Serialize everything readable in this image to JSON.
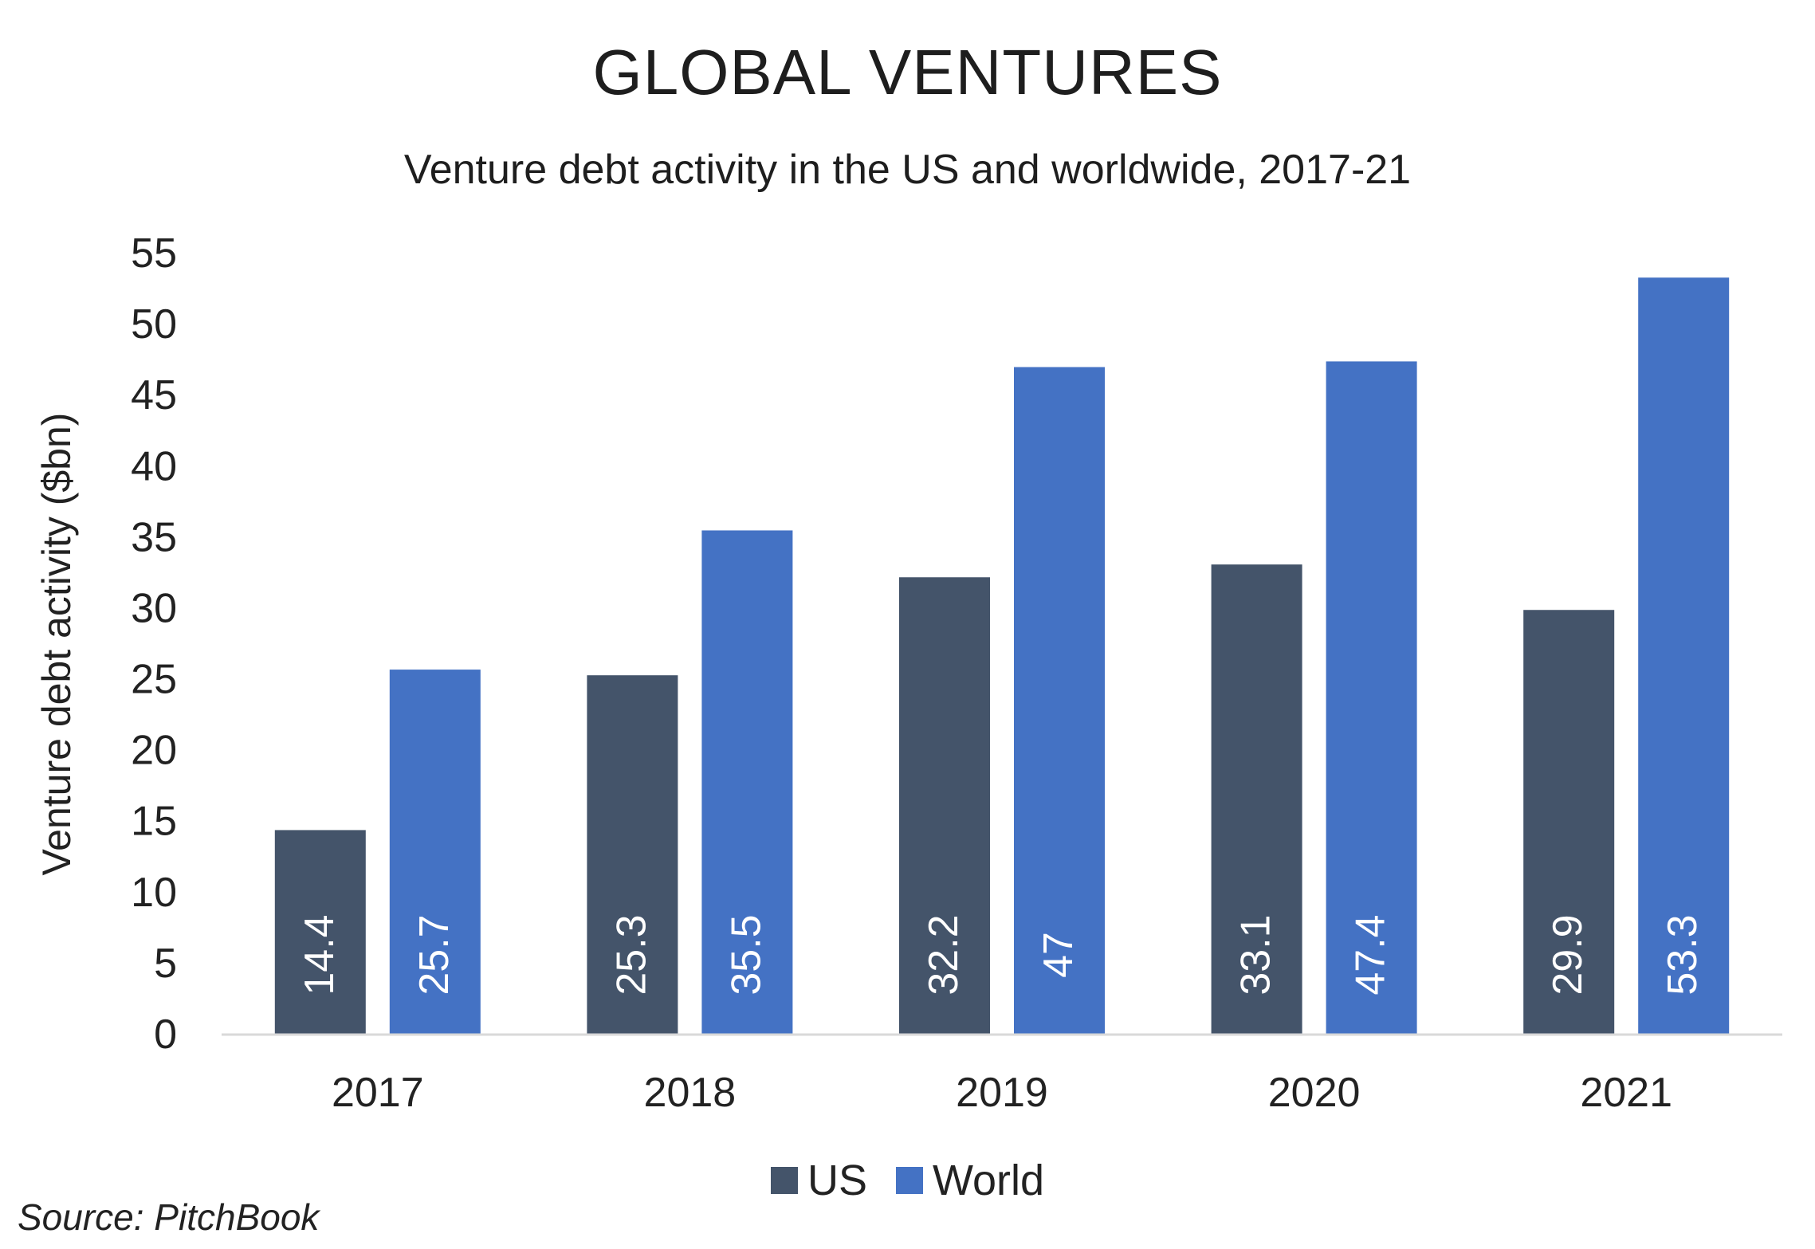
{
  "header": {
    "title": "GLOBAL VENTURES",
    "subtitle": "Venture debt activity in the US and worldwide, 2017-21"
  },
  "footer": {
    "source": "Source: PitchBook"
  },
  "colors": {
    "us": "#44546a",
    "world": "#4472c4",
    "axis": "#d9d9d9",
    "data_label": "#ffffff"
  },
  "chart_data": {
    "type": "bar",
    "title": "GLOBAL VENTURES",
    "subtitle": "Venture debt activity in the US and worldwide, 2017-21",
    "xlabel": "",
    "ylabel": "Venture debt activity ($bn)",
    "categories": [
      "2017",
      "2018",
      "2019",
      "2020",
      "2021"
    ],
    "series": [
      {
        "name": "US",
        "values": [
          14.4,
          25.3,
          32.2,
          33.1,
          29.9
        ],
        "labels": [
          "14.4",
          "25.3",
          "32.2",
          "33.1",
          "29.9"
        ]
      },
      {
        "name": "World",
        "values": [
          25.7,
          35.5,
          47,
          47.4,
          53.3
        ],
        "labels": [
          "25.7",
          "35.5",
          "47",
          "47.4",
          "53.3"
        ]
      }
    ],
    "ylim": [
      0,
      55
    ],
    "yticks": [
      0,
      5,
      10,
      15,
      20,
      25,
      30,
      35,
      40,
      45,
      50,
      55
    ],
    "grid": false,
    "legend": "bottom"
  }
}
